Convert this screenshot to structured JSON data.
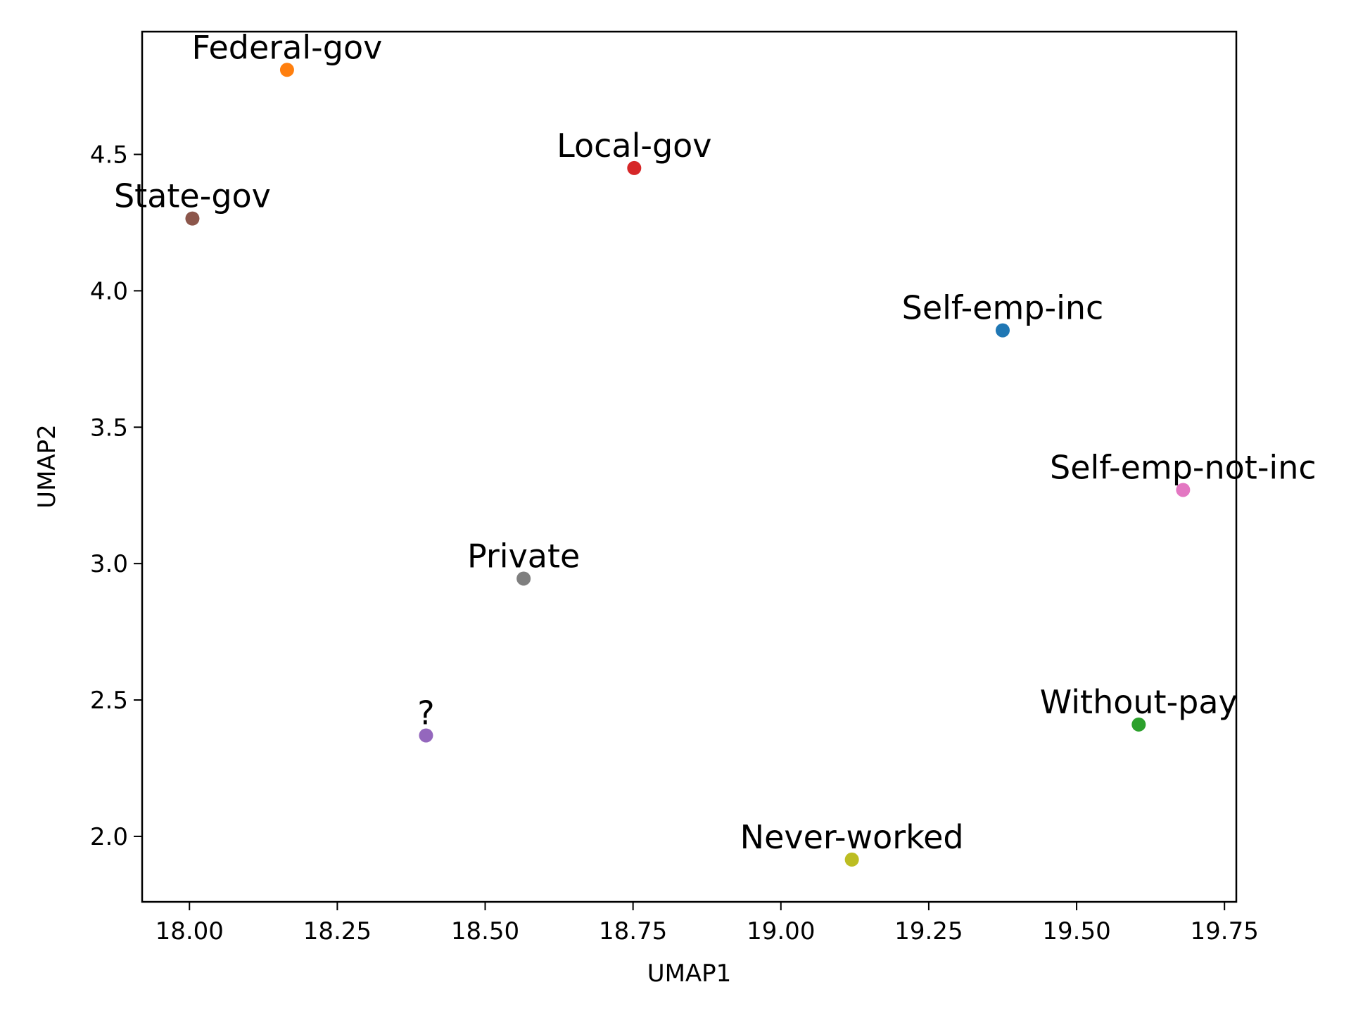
{
  "chart_data": {
    "type": "scatter",
    "title": "",
    "xlabel": "UMAP1",
    "ylabel": "UMAP2",
    "xlim": [
      17.92,
      19.77
    ],
    "ylim": [
      1.76,
      4.95
    ],
    "x_ticks": [
      18.0,
      18.25,
      18.5,
      18.75,
      19.0,
      19.25,
      19.5,
      19.75
    ],
    "x_tick_labels": [
      "18.00",
      "18.25",
      "18.50",
      "18.75",
      "19.00",
      "19.25",
      "19.50",
      "19.75"
    ],
    "y_ticks": [
      2.0,
      2.5,
      3.0,
      3.5,
      4.0,
      4.5
    ],
    "y_tick_labels": [
      "2.0",
      "2.5",
      "3.0",
      "3.5",
      "4.0",
      "4.5"
    ],
    "grid": false,
    "legend": "none",
    "points": [
      {
        "label": "Self-emp-inc",
        "x": 19.375,
        "y": 3.855,
        "color": "#1f77b4"
      },
      {
        "label": "Federal-gov",
        "x": 18.165,
        "y": 4.81,
        "color": "#ff7f0e"
      },
      {
        "label": "Without-pay",
        "x": 19.605,
        "y": 2.41,
        "color": "#2ca02c"
      },
      {
        "label": "Local-gov",
        "x": 18.752,
        "y": 4.45,
        "color": "#d62728"
      },
      {
        "label": "?",
        "x": 18.4,
        "y": 2.37,
        "color": "#9467bd"
      },
      {
        "label": "State-gov",
        "x": 18.005,
        "y": 4.265,
        "color": "#8c564b"
      },
      {
        "label": "Self-emp-not-inc",
        "x": 19.68,
        "y": 3.27,
        "color": "#e377c2"
      },
      {
        "label": "Private",
        "x": 18.565,
        "y": 2.945,
        "color": "#7f7f7f"
      },
      {
        "label": "Never-worked",
        "x": 19.12,
        "y": 1.915,
        "color": "#bcbd22"
      }
    ]
  }
}
